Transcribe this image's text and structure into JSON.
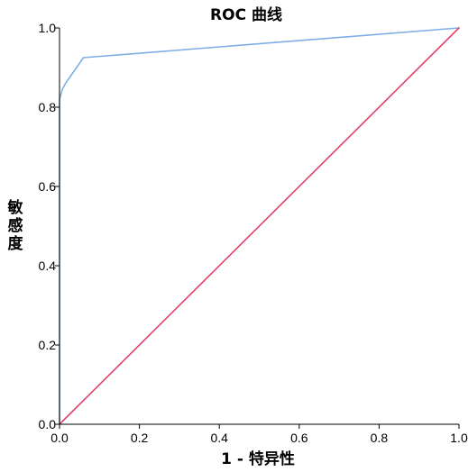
{
  "chart_data": {
    "type": "line",
    "title": "ROC 曲线",
    "xlabel": "1 - 特异性",
    "ylabel": "敏感度",
    "xlim": [
      0.0,
      1.0
    ],
    "ylim": [
      0.0,
      1.0
    ],
    "x_ticks": [
      "0.0",
      "0.2",
      "0.4",
      "0.6",
      "0.8",
      "1.0"
    ],
    "y_ticks": [
      "0.0",
      "0.2",
      "0.4",
      "0.6",
      "0.8",
      "1.0"
    ],
    "grid": false,
    "legend": "none",
    "series": [
      {
        "color": "#7faee8",
        "x": [
          0.0,
          0.0,
          0.0,
          0.007,
          0.015,
          0.06,
          1.0
        ],
        "y": [
          0.0,
          0.58,
          0.82,
          0.845,
          0.86,
          0.925,
          1.0
        ]
      },
      {
        "color": "#e0436a",
        "x": [
          0.0,
          1.0
        ],
        "y": [
          0.0,
          1.0
        ]
      }
    ],
    "axis_color": "#000000",
    "plot_background": "#ffffff"
  }
}
